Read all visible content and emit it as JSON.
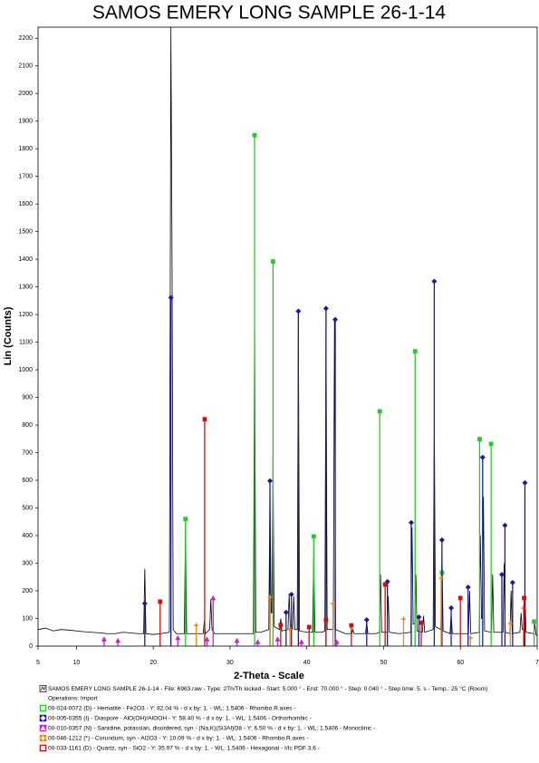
{
  "chart_data": {
    "type": "diffractogram",
    "title": "SAMOS EMERY LONG SAMPLE 26-1-14",
    "x_label": "2-Theta - Scale",
    "y_label": "Lin (Counts)",
    "xlim": [
      5,
      70
    ],
    "ylim": [
      0,
      2240
    ],
    "xticks": [
      5,
      10,
      20,
      30,
      40,
      50,
      60,
      {
        "value": 70,
        "label": "7"
      }
    ],
    "yticks": [
      0,
      100,
      200,
      300,
      400,
      500,
      600,
      700,
      800,
      900,
      1000,
      1100,
      1200,
      1300,
      1400,
      1500,
      1600,
      1700,
      1800,
      1900,
      2000,
      2100,
      2200
    ],
    "legend_note": "Operations: Import",
    "series": [
      {
        "name": "SAMOS EMERY LONG SAMPLE 26-1-14 - File: 6963.raw - Type: 2Th/Th locked - Start: 5.000 ° - End: 70.000 ° - Step: 0.040 ° - Step time: 5. s - Temp.: 25 °C (Room)",
        "kind": "line",
        "color": "#000000",
        "x": [
          5,
          6,
          7,
          8,
          9,
          10,
          11,
          12,
          13,
          14,
          15,
          16,
          17,
          18,
          18.75,
          18.9,
          19.05,
          20,
          21,
          22.1,
          22.3,
          22.45,
          22.6,
          23,
          24.05,
          24.2,
          24.35,
          25,
          26,
          26.5,
          26.65,
          26.8,
          27.35,
          27.5,
          27.65,
          28,
          29,
          30,
          31,
          32,
          33.05,
          33.2,
          33.35,
          34,
          35.05,
          35.2,
          35.35,
          35.45,
          35.6,
          35.75,
          36.45,
          36.6,
          36.75,
          37.55,
          37.7,
          37.85,
          38.15,
          38.3,
          38.45,
          38.75,
          38.9,
          39.05,
          40,
          40.75,
          40.9,
          41.05,
          42,
          42.35,
          42.5,
          42.65,
          43.45,
          43.6,
          43.75,
          45,
          45.85,
          46,
          46.15,
          47.65,
          47.8,
          47.95,
          49,
          49.45,
          49.6,
          49.75,
          50.45,
          50.6,
          50.75,
          52,
          53.55,
          53.7,
          53.85,
          54.05,
          54.2,
          54.35,
          55.05,
          55.2,
          55.35,
          56.45,
          56.6,
          56.75,
          57.45,
          57.6,
          57.75,
          58.65,
          58.8,
          58.95,
          60,
          61.05,
          61.2,
          61.35,
          62.45,
          62.6,
          62.75,
          62.85,
          63,
          63.15,
          64.05,
          64.2,
          64.35,
          65.55,
          65.7,
          65.85,
          66.45,
          66.6,
          66.75,
          67.75,
          67.9,
          68.05,
          68.25,
          68.4,
          68.55,
          69.55,
          69.7,
          69.85,
          70
        ],
        "values": [
          60,
          65,
          55,
          60,
          58,
          55,
          52,
          50,
          48,
          45,
          45,
          50,
          48,
          45,
          45,
          280,
          45,
          42,
          45,
          50,
          2240,
          1400,
          60,
          45,
          45,
          450,
          45,
          45,
          45,
          45,
          90,
          45,
          60,
          170,
          60,
          45,
          45,
          45,
          45,
          45,
          45,
          1200,
          50,
          50,
          60,
          590,
          120,
          120,
          680,
          70,
          60,
          100,
          55,
          60,
          190,
          60,
          60,
          180,
          60,
          60,
          1200,
          55,
          50,
          50,
          340,
          50,
          50,
          55,
          1200,
          60,
          60,
          1180,
          60,
          45,
          45,
          60,
          45,
          45,
          90,
          45,
          45,
          50,
          260,
          50,
          50,
          180,
          50,
          45,
          50,
          430,
          80,
          80,
          260,
          55,
          50,
          110,
          50,
          60,
          830,
          70,
          60,
          350,
          55,
          45,
          120,
          45,
          45,
          45,
          200,
          45,
          50,
          400,
          100,
          100,
          540,
          55,
          50,
          260,
          50,
          50,
          300,
          50,
          45,
          200,
          45,
          50,
          120,
          60,
          60,
          200,
          50,
          45,
          80,
          40,
          40
        ]
      },
      {
        "name": "00-024-0072 (D) - Hematite - Fe2O3 - Y: 82.04 % - d x by: 1. - WL: 1.5406 - Rhombo.R.axes -",
        "kind": "stick",
        "marker": "square",
        "color": "#22cc22",
        "x": [
          24.2,
          33.2,
          35.6,
          40.9,
          49.5,
          54.1,
          57.6,
          62.5,
          64.0,
          69.6
        ],
        "values": [
          460,
          1849,
          1392,
          397,
          850,
          1067,
          266,
          749,
          732,
          89
        ]
      },
      {
        "name": "00-005-0355 (I) - Diaspore - AlO(OH)/AlOOH - Y: 58.40 % - d x by: 1. - WL: 1.5406 - Orthorhombic -",
        "kind": "stick",
        "marker": "diamond",
        "color": "#1a1aa0",
        "x": [
          18.9,
          22.3,
          35.2,
          37.3,
          38.0,
          38.9,
          42.5,
          43.7,
          47.8,
          50.5,
          53.6,
          54.6,
          56.6,
          57.6,
          58.8,
          61.0,
          62.9,
          65.4,
          65.8,
          66.8,
          68.4
        ],
        "values": [
          154,
          1261,
          598,
          122,
          187,
          1212,
          1222,
          1182,
          95,
          233,
          447,
          105,
          1320,
          384,
          138,
          213,
          683,
          259,
          437,
          230,
          591
        ]
      },
      {
        "name": "00-010-0357 (N) - Sanidine, potassian, disordered, syn - (Na,K)(Si3Al)O8 - Y: 6.50 % - d x by: 1. - WL: 1.5406 - Monoclinic -",
        "kind": "stick",
        "marker": "triangle",
        "color": "#cc22cc",
        "x": [
          13.6,
          15.4,
          23.2,
          27.0,
          27.8,
          30.9,
          33.6,
          36.2,
          39.3,
          43.9
        ],
        "values": [
          25,
          20,
          30,
          25,
          174,
          20,
          15,
          25,
          15,
          15
        ]
      },
      {
        "name": "00-046-1212 (*) - Corundum, syn - Al2O3 - Y: 10.09 % - d x by: 1. - WL: 1.5406 - Rhombo.R.axes -",
        "kind": "stick",
        "marker": "star",
        "color": "#ee8811",
        "x": [
          25.6,
          35.2,
          37.8,
          43.4,
          52.6,
          57.5,
          61.3,
          66.5,
          68.2
        ],
        "values": [
          75,
          177,
          60,
          154,
          98,
          246,
          30,
          82,
          138
        ]
      },
      {
        "name": "00-033-1161 (D) - Quartz, syn - SiO2 - Y: 35.97 % - d x by: 1. - WL: 1.5406 - Hexagonal - I/Ic PDF 3.6 -",
        "kind": "stick",
        "marker": "square",
        "color": "#cc1111",
        "x": [
          20.9,
          26.7,
          36.6,
          40.3,
          42.5,
          45.8,
          50.2,
          54.9,
          60.0,
          68.3
        ],
        "values": [
          161,
          821,
          76,
          69,
          95,
          75,
          223,
          85,
          174,
          174
        ]
      }
    ]
  }
}
